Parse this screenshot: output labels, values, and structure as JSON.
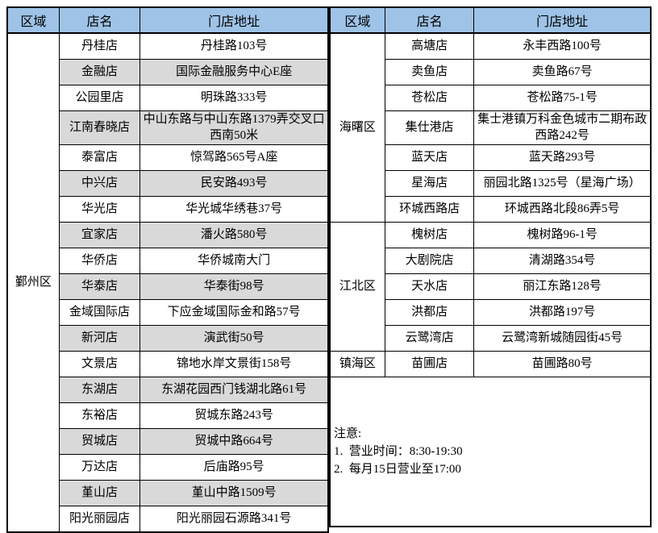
{
  "header": {
    "region": "区域",
    "store": "店名",
    "address": "门店地址"
  },
  "left_table": {
    "region": "鄞州区",
    "rows": [
      {
        "store": "丹桂店",
        "address": "丹桂路103号"
      },
      {
        "store": "金融店",
        "address": "国际金融服务中心E座"
      },
      {
        "store": "公园里店",
        "address": "明珠路333号"
      },
      {
        "store": "江南春晓店",
        "address": "中山东路与中山东路1379弄交叉口西南50米"
      },
      {
        "store": "泰富店",
        "address": "惊驾路565号A座"
      },
      {
        "store": "中兴店",
        "address": "民安路493号"
      },
      {
        "store": "华光店",
        "address": "华光城华绣巷37号"
      },
      {
        "store": "宜家店",
        "address": "潘火路580号"
      },
      {
        "store": "华侨店",
        "address": "华侨城南大门"
      },
      {
        "store": "华泰店",
        "address": "华泰街98号"
      },
      {
        "store": "金域国际店",
        "address": "下应金域国际金和路57号"
      },
      {
        "store": "新河店",
        "address": "演武街50号"
      },
      {
        "store": "文景店",
        "address": "锦地水岸文景街158号"
      },
      {
        "store": "东湖店",
        "address": "东湖花园西门钱湖北路61号"
      },
      {
        "store": "东裕店",
        "address": "贸城东路243号"
      },
      {
        "store": "贸城店",
        "address": "贸城中路664号"
      },
      {
        "store": "万达店",
        "address": "后庙路95号"
      },
      {
        "store": "堇山店",
        "address": "堇山中路1509号"
      },
      {
        "store": "阳光丽园店",
        "address": "阳光丽园石源路341号"
      }
    ]
  },
  "right_table": {
    "groups": [
      {
        "region": "海曙区",
        "rows": [
          {
            "store": "高塘店",
            "address": "永丰西路100号"
          },
          {
            "store": "卖鱼店",
            "address": "卖鱼路67号"
          },
          {
            "store": "苍松店",
            "address": "苍松路75-1号"
          },
          {
            "store": "集仕港店",
            "address": "集士港镇万科金色城市二期布政西路242号"
          },
          {
            "store": "蓝天店",
            "address": "蓝天路293号"
          },
          {
            "store": "星海店",
            "address": "丽园北路1325号（星海广场）"
          },
          {
            "store": "环城西路店",
            "address": "环城西路北段86弄5号"
          }
        ]
      },
      {
        "region": "江北区",
        "rows": [
          {
            "store": "槐树店",
            "address": "槐树路96-1号"
          },
          {
            "store": "大剧院店",
            "address": "清湖路354号"
          },
          {
            "store": "天水店",
            "address": "丽江东路128号"
          },
          {
            "store": "洪都店",
            "address": "洪都路197号"
          },
          {
            "store": "云鹭湾店",
            "address": "云鹭湾新城随园街45号"
          }
        ]
      },
      {
        "region": "镇海区",
        "rows": [
          {
            "store": "苗圃店",
            "address": "苗圃路80号"
          }
        ]
      }
    ],
    "note": {
      "title": "注意:",
      "lines": [
        "1.  营业时间：8:30-19:30",
        "2.  每月15日营业至17:00"
      ]
    }
  },
  "colors": {
    "header_bg": "#9EC3E7",
    "alt_row_bg": "#D9D9D9",
    "border": "#000000",
    "page_bg": "#FFFFFF"
  }
}
